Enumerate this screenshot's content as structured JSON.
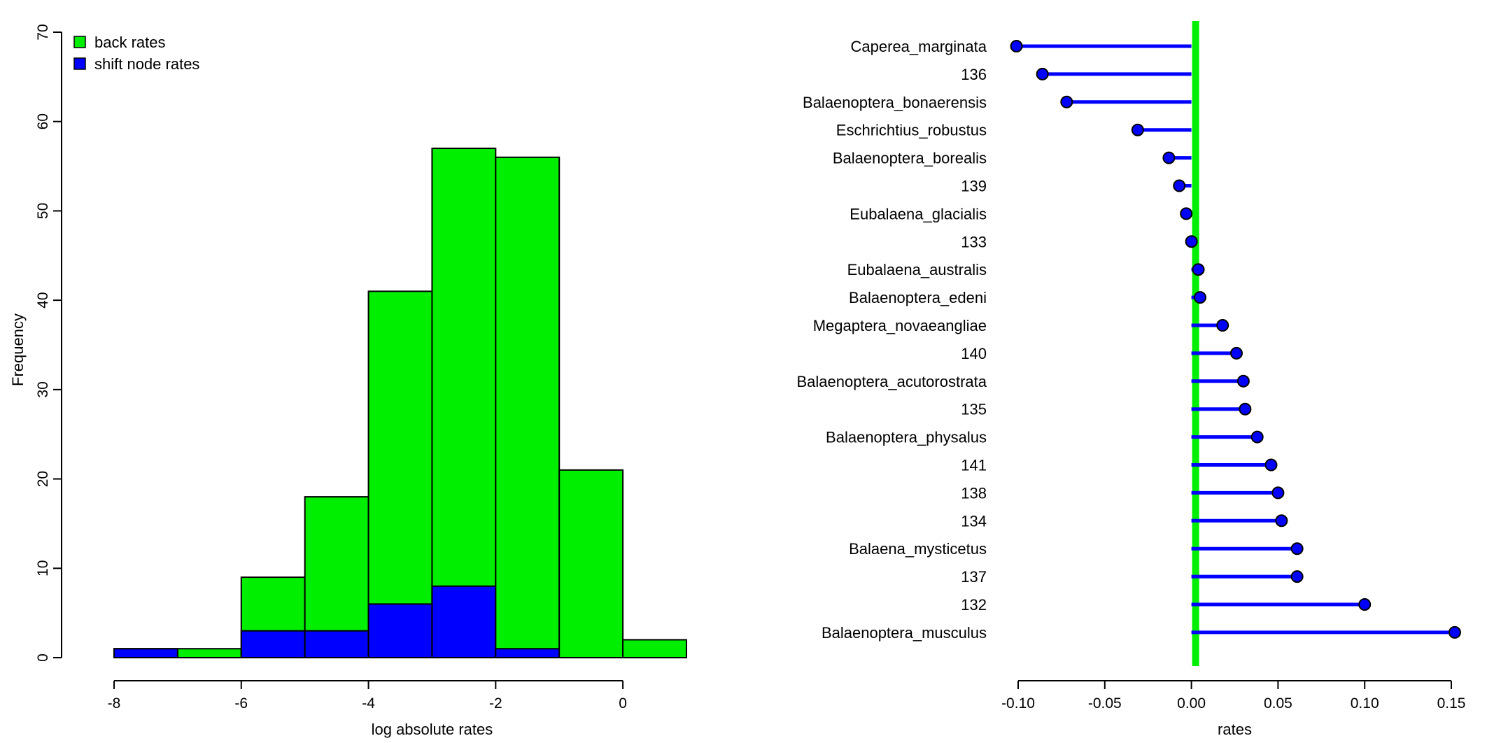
{
  "colors": {
    "back": "#00ee00",
    "shift": "#0000ff",
    "line": "#0000ff",
    "zero": "#00ee00",
    "axis": "#000000"
  },
  "chart_data": [
    {
      "type": "bar",
      "subtype": "stacked-histogram",
      "xlabel": "log absolute rates",
      "ylabel": "Frequency",
      "xlim": [
        -8,
        1
      ],
      "ylim": [
        0,
        70
      ],
      "xticks": [
        -8,
        -6,
        -4,
        -2,
        0
      ],
      "yticks": [
        0,
        10,
        20,
        30,
        40,
        50,
        60,
        70
      ],
      "bins": [
        [
          -8,
          -7
        ],
        [
          -7,
          -6
        ],
        [
          -6,
          -5
        ],
        [
          -5,
          -4
        ],
        [
          -4,
          -3
        ],
        [
          -3,
          -2
        ],
        [
          -2,
          -1
        ],
        [
          -1,
          0
        ],
        [
          0,
          1
        ]
      ],
      "series": [
        {
          "name": "back rates",
          "color": "#00ee00",
          "values": [
            1,
            1,
            9,
            18,
            41,
            57,
            56,
            21,
            2
          ]
        },
        {
          "name": "shift node rates",
          "color": "#0000ff",
          "values": [
            1,
            0,
            3,
            3,
            6,
            8,
            1,
            0,
            0
          ]
        }
      ],
      "legend": {
        "position": "top-left",
        "entries": [
          "back rates",
          "shift node rates"
        ]
      }
    },
    {
      "type": "lollipop",
      "xlabel": "rates",
      "xlim": [
        -0.1,
        0.15
      ],
      "xticks": [
        "-0.10",
        "-0.05",
        "0.00",
        "0.05",
        "0.10",
        "0.15"
      ],
      "reference_line": 0,
      "labels": [
        "Caperea_marginata",
        "136",
        "Balaenoptera_bonaerensis",
        "Eschrichtius_robustus",
        "Balaenoptera_borealis",
        "139",
        "Eubalaena_glacialis",
        "133",
        "Eubalaena_australis",
        "Balaenoptera_edeni",
        "Megaptera_novaeangliae",
        "140",
        "Balaenoptera_acutorostrata",
        "135",
        "Balaenoptera_physalus",
        "141",
        "138",
        "134",
        "Balaena_mysticetus",
        "137",
        "132",
        "Balaenoptera_musculus"
      ],
      "values": [
        -0.101,
        -0.086,
        -0.072,
        -0.031,
        -0.013,
        -0.007,
        -0.003,
        0.0,
        0.004,
        0.005,
        0.018,
        0.026,
        0.03,
        0.031,
        0.038,
        0.046,
        0.05,
        0.052,
        0.061,
        0.061,
        0.1,
        0.152
      ]
    }
  ]
}
